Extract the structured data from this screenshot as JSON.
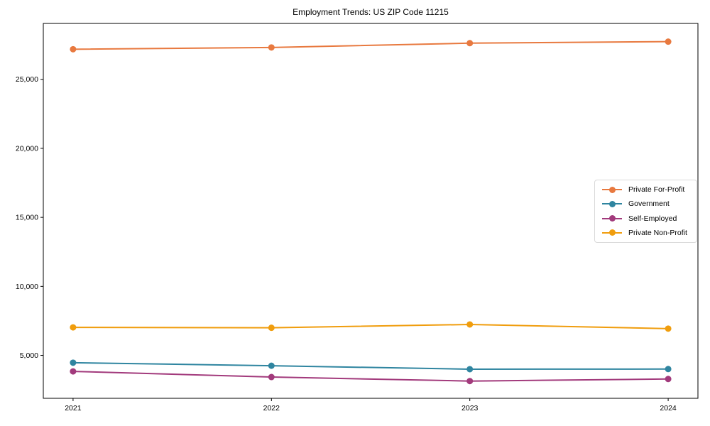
{
  "figure": {
    "background": "#ffffff",
    "text_color": "#000000"
  },
  "chart_data": {
    "type": "line",
    "title": "Employment Trends: US ZIP Code 11215",
    "xlabel": "",
    "ylabel": "",
    "x": [
      2021,
      2022,
      2023,
      2024
    ],
    "x_tick_labels": [
      "2021",
      "2022",
      "2023",
      "2024"
    ],
    "series": [
      {
        "name": "Private For-Profit",
        "color": "#e8793f",
        "values": [
          27180,
          27310,
          27620,
          27730
        ]
      },
      {
        "name": "Government",
        "color": "#2f85a0",
        "values": [
          4470,
          4250,
          4000,
          4010
        ]
      },
      {
        "name": "Self-Employed",
        "color": "#a23a7c",
        "values": [
          3840,
          3430,
          3140,
          3290
        ]
      },
      {
        "name": "Private Non-Profit",
        "color": "#f09d0d",
        "values": [
          7030,
          7000,
          7240,
          6940
        ]
      }
    ],
    "xlim": [
      2020.85,
      2024.15
    ],
    "ylim": [
      1890,
      29050
    ],
    "yticks": [
      5000,
      10000,
      15000,
      20000,
      25000
    ],
    "ytick_labels": [
      "5,000",
      "10,000",
      "15,000",
      "20,000",
      "25,000"
    ],
    "grid": false,
    "marker": "circle",
    "marker_size": 9,
    "line_width": 2,
    "legend": {
      "position": "center right",
      "border_color": "#d9d9d9",
      "entries": [
        "Private For-Profit",
        "Government",
        "Self-Employed",
        "Private Non-Profit"
      ]
    }
  }
}
